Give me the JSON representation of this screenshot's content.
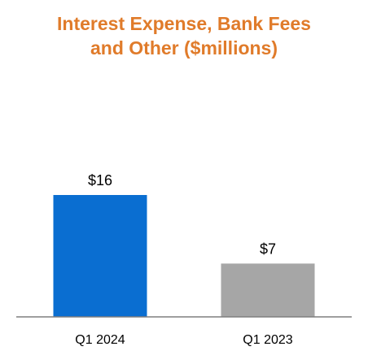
{
  "chart_data": {
    "type": "bar",
    "title": "Interest Expense, Bank Fees and Other ($millions)",
    "title_lines": [
      "Interest Expense, Bank Fees",
      "and Other ($millions)"
    ],
    "categories": [
      "Q1 2024",
      "Q1 2023"
    ],
    "values": [
      16,
      7
    ],
    "data_labels": [
      "$16",
      "$7"
    ],
    "colors": [
      "#0a6ed1",
      "#a6a6a6"
    ],
    "xlabel": "",
    "ylabel": "",
    "ylim": [
      0,
      16
    ],
    "grid": false,
    "legend": "none"
  },
  "colors": {
    "title": "#e07b2a",
    "axis": "#7f7f7f"
  }
}
